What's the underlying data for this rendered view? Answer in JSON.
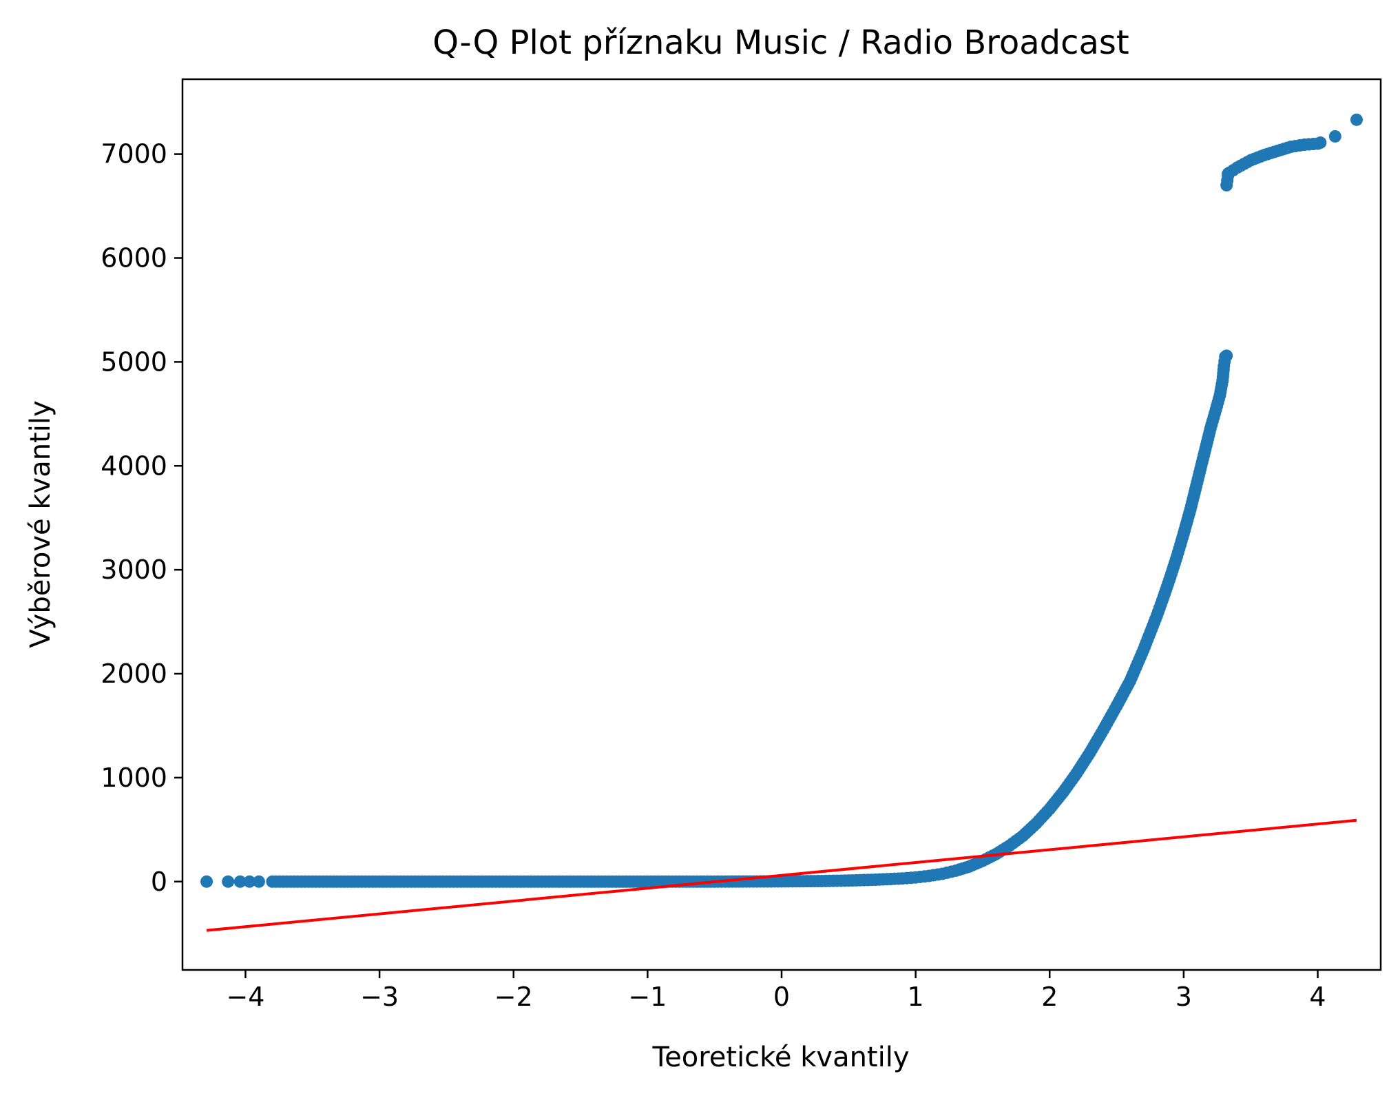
{
  "chart_data": {
    "type": "scatter",
    "title": "Q-Q Plot příznaku Music / Radio Broadcast",
    "xlabel": "Teoretické kvantily",
    "ylabel": "Výběrové kvantily",
    "xlim": [
      -4.47,
      4.47
    ],
    "ylim": [
      -850,
      7720
    ],
    "x_ticks": [
      -4,
      -3,
      -2,
      -1,
      0,
      1,
      2,
      3,
      4
    ],
    "x_tick_labels": [
      "−4",
      "−3",
      "−2",
      "−1",
      "0",
      "1",
      "2",
      "3",
      "4"
    ],
    "y_ticks": [
      0,
      1000,
      2000,
      3000,
      4000,
      5000,
      6000,
      7000
    ],
    "y_tick_labels": [
      "0",
      "1000",
      "2000",
      "3000",
      "4000",
      "5000",
      "6000",
      "7000"
    ],
    "grid": false,
    "series": [
      {
        "kind": "points",
        "color": "#1f77b4",
        "x": [
          -4.29,
          -4.13,
          -4.04,
          -3.97,
          -3.9,
          -3.8,
          -3.5,
          -3.0,
          -2.5,
          -2.0,
          -1.5,
          -1.0,
          -0.5,
          0.0,
          0.3,
          0.5,
          0.7,
          0.9,
          1.0,
          1.1,
          1.2,
          1.3,
          1.4,
          1.5,
          1.6,
          1.7,
          1.8,
          1.9,
          2.0,
          2.1,
          2.2,
          2.3,
          2.4,
          2.5,
          2.6,
          2.7,
          2.8,
          2.85,
          2.9,
          2.95,
          3.0,
          3.05,
          3.1,
          3.15,
          3.2,
          3.24,
          3.27,
          3.29,
          3.3,
          3.31,
          3.32,
          3.32,
          3.33,
          3.33,
          3.34,
          3.4,
          3.5,
          3.6,
          3.7,
          3.8,
          3.9,
          4.0,
          4.02,
          4.13,
          4.29
        ],
        "y": [
          0,
          0,
          0,
          0,
          0,
          0,
          0,
          0,
          0,
          0,
          0,
          0,
          0,
          2,
          5,
          10,
          18,
          30,
          40,
          55,
          75,
          105,
          145,
          200,
          265,
          345,
          440,
          560,
          700,
          860,
          1040,
          1240,
          1460,
          1690,
          1930,
          2230,
          2560,
          2740,
          2930,
          3130,
          3350,
          3580,
          3840,
          4100,
          4360,
          4540,
          4680,
          4820,
          4960,
          5050,
          5060,
          6700,
          6790,
          6810,
          6820,
          6870,
          6940,
          6990,
          7030,
          7070,
          7090,
          7100,
          7110,
          7170,
          7330
        ]
      },
      {
        "kind": "line",
        "color": "#ff0000",
        "x": [
          -4.29,
          4.29
        ],
        "y": [
          -470,
          590
        ]
      }
    ]
  }
}
